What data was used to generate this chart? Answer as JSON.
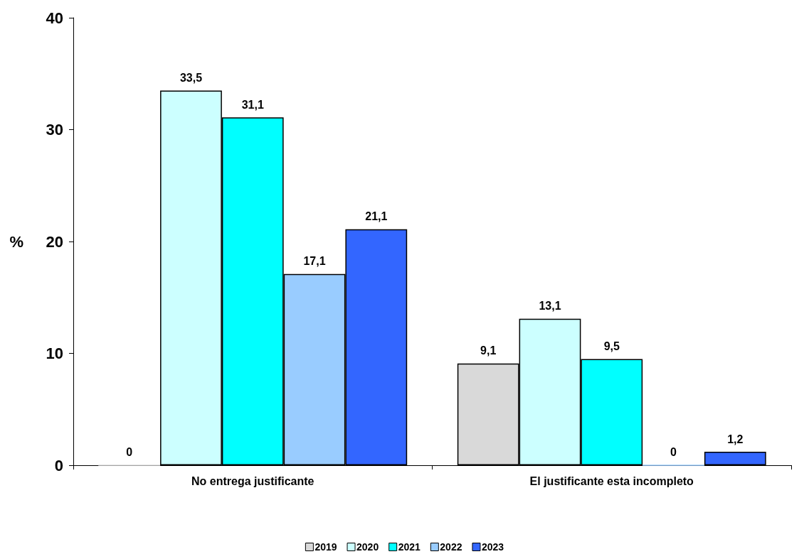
{
  "chart_data": {
    "type": "bar",
    "ylabel": "%",
    "categories": [
      "No entrega justificante",
      "El justificante esta incompleto"
    ],
    "series": [
      {
        "name": "2019",
        "color": "#d9d9d9",
        "values": [
          0,
          9.1
        ],
        "value_labels": [
          "0",
          "9,1"
        ]
      },
      {
        "name": "2020",
        "color": "#ccffff",
        "values": [
          33.5,
          13.1
        ],
        "value_labels": [
          "33,5",
          "13,1"
        ]
      },
      {
        "name": "2021",
        "color": "#00ffff",
        "values": [
          31.1,
          9.5
        ],
        "value_labels": [
          "31,1",
          "9,5"
        ]
      },
      {
        "name": "2022",
        "color": "#99ccff",
        "values": [
          17.1,
          0
        ],
        "value_labels": [
          "17,1",
          "0"
        ]
      },
      {
        "name": "2023",
        "color": "#3366ff",
        "values": [
          21.1,
          1.2
        ],
        "value_labels": [
          "21,1",
          "1,2"
        ]
      }
    ],
    "ylim": [
      0,
      40
    ],
    "yticks": [
      0,
      10,
      20,
      30,
      40
    ],
    "grid": false,
    "legend": "bottom"
  }
}
